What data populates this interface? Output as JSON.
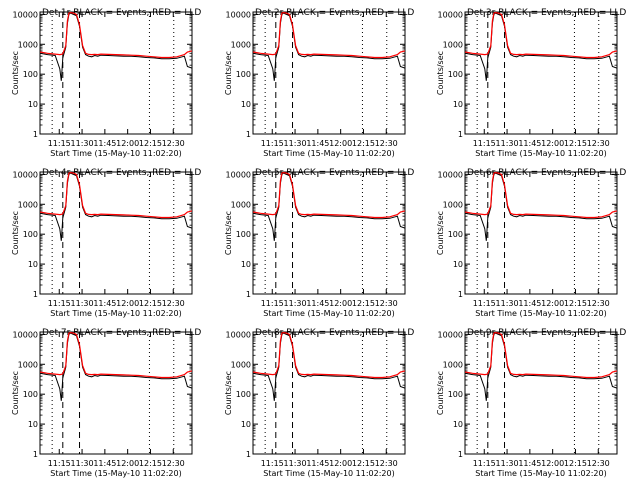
{
  "common": {
    "xlabel": "Start Time (15-May-10 11:02:20)",
    "ylabel": "Counts/sec",
    "x_tick_labels": [
      "11:15",
      "11:30",
      "11:45",
      "12:00",
      "12:15",
      "12:30"
    ],
    "y_tick_labels": [
      "1",
      "10",
      "100",
      "1000",
      "10000"
    ],
    "y_scale": "log",
    "ylim": [
      1,
      12000
    ],
    "xlim_minutes": [
      0,
      100
    ],
    "colors": {
      "events": "#000000",
      "lld": "#ff0000",
      "grid": "#000000"
    }
  },
  "chart_data": [
    {
      "title": "Det 1r BLACK = Events, RED = LLD"
    },
    {
      "title": "Det 2r BLACK = Events, RED = LLD"
    },
    {
      "title": "Det 3r BLACK = Events, RED = LLD"
    },
    {
      "title": "Det 4r BLACK = Events, RED = LLD"
    },
    {
      "title": "Det 5r BLACK = Events, RED = LLD"
    },
    {
      "title": "Det 6r BLACK = Events, RED = LLD"
    },
    {
      "title": "Det 7r BLACK = Events, RED = LLD"
    },
    {
      "title": "Det 8r BLACK = Events, RED = LLD"
    },
    {
      "title": "Det 9r BLACK = Events, RED = LLD"
    }
  ],
  "shared_series": {
    "type": "line",
    "x_minutes": [
      0,
      5,
      10,
      13,
      14,
      15,
      17,
      18,
      19,
      20,
      22,
      24,
      26,
      28,
      30,
      32,
      34,
      36,
      38,
      40,
      45,
      50,
      55,
      60,
      65,
      70,
      75,
      80,
      85,
      90,
      95,
      97,
      100
    ],
    "events": [
      500,
      450,
      420,
      150,
      60,
      350,
      800,
      5000,
      10000,
      11000,
      10000,
      9000,
      4000,
      800,
      450,
      400,
      380,
      420,
      400,
      430,
      420,
      410,
      400,
      400,
      380,
      360,
      350,
      330,
      330,
      340,
      400,
      180,
      160
    ],
    "lld": [
      550,
      500,
      470,
      450,
      460,
      480,
      900,
      6000,
      11000,
      11500,
      11000,
      10000,
      4500,
      900,
      500,
      460,
      450,
      460,
      450,
      470,
      460,
      450,
      440,
      430,
      420,
      400,
      380,
      360,
      360,
      380,
      450,
      550,
      600
    ],
    "dashed_vlines_minutes": [
      15,
      26
    ],
    "dotted_vlines_minutes": [
      8,
      72,
      88
    ]
  }
}
